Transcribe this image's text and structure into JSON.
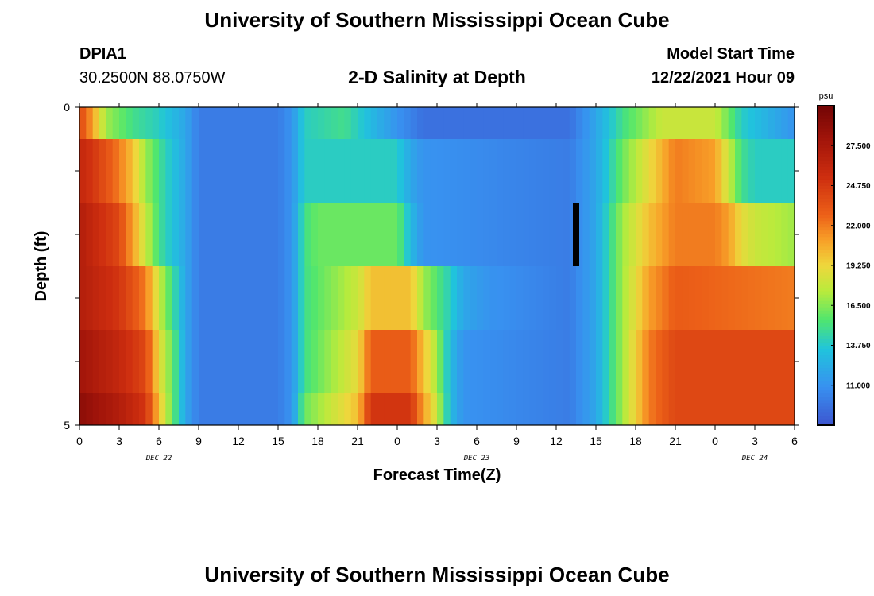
{
  "header": {
    "title": "University of Southern Mississippi Ocean Cube",
    "station": "DPIA1",
    "coords": "30.2500N  88.0750W",
    "subtitle": "2-D Salinity at Depth",
    "model_start_label": "Model Start Time",
    "model_start_value": "12/22/2021 Hour 09"
  },
  "footer": {
    "title": "University of Southern Mississippi Ocean Cube"
  },
  "chart_data": {
    "type": "heatmap",
    "xlabel": "Forecast Time(Z)",
    "ylabel": "Depth (ft)",
    "x_tick_labels": [
      "0",
      "3",
      "6",
      "9",
      "12",
      "15",
      "18",
      "21",
      "0",
      "3",
      "6",
      "9",
      "12",
      "15",
      "18",
      "21",
      "0",
      "3",
      "6"
    ],
    "date_labels": [
      {
        "text": "DEC 22",
        "tick_index": 2
      },
      {
        "text": "DEC 23",
        "tick_index": 10
      },
      {
        "text": "DEC 24",
        "tick_index": 17
      }
    ],
    "y_tick_labels": [
      {
        "text": "0",
        "value": 0
      },
      {
        "text": "5",
        "value": 5
      }
    ],
    "x_range_hours": [
      0,
      54
    ],
    "y_range_ft": [
      0,
      5
    ],
    "depth_bins_ft": [
      [
        0,
        0.5
      ],
      [
        0.5,
        1.5
      ],
      [
        1.5,
        2.5
      ],
      [
        2.5,
        3.5
      ],
      [
        3.5,
        4.5
      ],
      [
        4.5,
        5
      ]
    ],
    "colorbar": {
      "unit": "psu",
      "min": 8.25,
      "max": 30.25,
      "tick_values": [
        11.0,
        13.75,
        16.5,
        19.25,
        22.0,
        24.75,
        27.5
      ],
      "tick_labels": [
        "11.000",
        "13.750",
        "16.500",
        "19.250",
        "22.000",
        "24.750",
        "27.500"
      ]
    },
    "salinity_keyframes": [
      {
        "depth_bin": "0-0.5 ft",
        "points": [
          [
            0,
            24
          ],
          [
            1,
            21
          ],
          [
            2,
            17
          ],
          [
            4,
            15
          ],
          [
            6,
            14
          ],
          [
            8,
            12
          ],
          [
            9,
            10
          ],
          [
            15,
            10
          ],
          [
            16,
            11
          ],
          [
            17,
            14
          ],
          [
            20,
            15
          ],
          [
            23,
            12
          ],
          [
            24,
            11
          ],
          [
            26,
            9.5
          ],
          [
            33,
            9.5
          ],
          [
            37,
            9.5
          ],
          [
            39,
            12
          ],
          [
            41,
            15
          ],
          [
            43,
            17
          ],
          [
            44,
            18
          ],
          [
            48,
            18
          ],
          [
            49,
            16
          ],
          [
            50,
            14
          ],
          [
            54,
            11
          ]
        ]
      },
      {
        "depth_bin": "0.5-1.5 ft",
        "points": [
          [
            0,
            26
          ],
          [
            1,
            25
          ],
          [
            3,
            22
          ],
          [
            4,
            20
          ],
          [
            5,
            17
          ],
          [
            6,
            15
          ],
          [
            8,
            12
          ],
          [
            9,
            10
          ],
          [
            15,
            10
          ],
          [
            16,
            11
          ],
          [
            17,
            14
          ],
          [
            24,
            14
          ],
          [
            25,
            12
          ],
          [
            26,
            11
          ],
          [
            37,
            10
          ],
          [
            39,
            12
          ],
          [
            41,
            16
          ],
          [
            43,
            19
          ],
          [
            45,
            22
          ],
          [
            48,
            21
          ],
          [
            49,
            18
          ],
          [
            50,
            15
          ],
          [
            51,
            14
          ],
          [
            54,
            14
          ]
        ]
      },
      {
        "depth_bin": "1.5-2.5 ft",
        "points": [
          [
            0,
            27
          ],
          [
            1,
            26
          ],
          [
            3,
            24
          ],
          [
            4,
            21
          ],
          [
            5,
            18
          ],
          [
            6,
            15
          ],
          [
            8,
            12
          ],
          [
            9,
            10
          ],
          [
            15,
            10
          ],
          [
            16,
            11
          ],
          [
            17,
            15
          ],
          [
            18,
            16
          ],
          [
            24,
            16
          ],
          [
            25,
            13
          ],
          [
            26,
            11
          ],
          [
            37,
            10
          ],
          [
            39,
            12
          ],
          [
            41,
            17
          ],
          [
            43,
            20
          ],
          [
            45,
            22
          ],
          [
            48,
            22
          ],
          [
            49,
            21
          ],
          [
            50,
            19
          ],
          [
            51,
            18
          ],
          [
            54,
            17
          ]
        ]
      },
      {
        "depth_bin": "2.5-3.5 ft",
        "points": [
          [
            0,
            27
          ],
          [
            3,
            25
          ],
          [
            5,
            22
          ],
          [
            6,
            18
          ],
          [
            7,
            15
          ],
          [
            8,
            12
          ],
          [
            9,
            10
          ],
          [
            15,
            10
          ],
          [
            16,
            11
          ],
          [
            17,
            15
          ],
          [
            21,
            18
          ],
          [
            22,
            20
          ],
          [
            25,
            20
          ],
          [
            26,
            17
          ],
          [
            28,
            14
          ],
          [
            29,
            12
          ],
          [
            31,
            11
          ],
          [
            37,
            10
          ],
          [
            39,
            12
          ],
          [
            41,
            17
          ],
          [
            43,
            21
          ],
          [
            45,
            23
          ],
          [
            54,
            22
          ]
        ]
      },
      {
        "depth_bin": "3.5-4.5 ft",
        "points": [
          [
            0,
            28
          ],
          [
            3,
            26
          ],
          [
            5,
            24
          ],
          [
            6,
            19
          ],
          [
            7,
            16
          ],
          [
            8,
            12
          ],
          [
            9,
            10
          ],
          [
            15,
            10
          ],
          [
            16,
            11
          ],
          [
            17,
            15
          ],
          [
            21,
            19
          ],
          [
            22,
            23
          ],
          [
            25,
            23
          ],
          [
            26,
            20
          ],
          [
            27,
            17
          ],
          [
            28,
            13
          ],
          [
            29,
            11
          ],
          [
            37,
            10
          ],
          [
            39,
            12
          ],
          [
            41,
            17
          ],
          [
            43,
            22
          ],
          [
            45,
            24
          ],
          [
            54,
            24
          ]
        ]
      },
      {
        "depth_bin": "4.5-5 ft",
        "points": [
          [
            0,
            29
          ],
          [
            3,
            27
          ],
          [
            5,
            25
          ],
          [
            6,
            20
          ],
          [
            7,
            16
          ],
          [
            8,
            12
          ],
          [
            9,
            10
          ],
          [
            15,
            10
          ],
          [
            16,
            11
          ],
          [
            17,
            16
          ],
          [
            21,
            20
          ],
          [
            22,
            25
          ],
          [
            25,
            25
          ],
          [
            26,
            21
          ],
          [
            27,
            18
          ],
          [
            28,
            13
          ],
          [
            29,
            11
          ],
          [
            37,
            10
          ],
          [
            39,
            12
          ],
          [
            41,
            17
          ],
          [
            43,
            22
          ],
          [
            45,
            24
          ],
          [
            54,
            24
          ]
        ]
      }
    ],
    "missing_data_marker": {
      "hour": 37.5,
      "depth_bin": "1.5-2.5 ft"
    }
  }
}
